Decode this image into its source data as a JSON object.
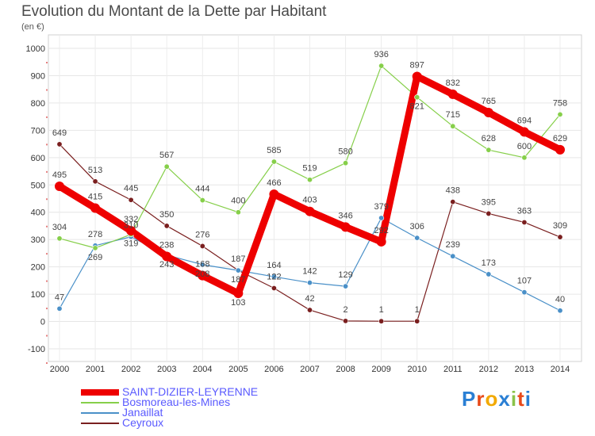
{
  "header": {
    "title": "Evolution du Montant de la Dette par Habitant",
    "unit": "(en €)"
  },
  "brand": {
    "letters": [
      "P",
      "r",
      "o",
      "x",
      "i",
      "t",
      "i"
    ],
    "colors": [
      "#2a7fd4",
      "#e84a1a",
      "#f2a900",
      "#2a7fd4",
      "#8bc34a",
      "#e84a1a",
      "#2a7fd4"
    ]
  },
  "chart_data": {
    "type": "line",
    "title": "Evolution du Montant de la Dette par Habitant",
    "ylabel": "(en €)",
    "xlabel": "",
    "x": [
      "2000",
      "2001",
      "2002",
      "2003",
      "2004",
      "2005",
      "2006",
      "2007",
      "2008",
      "2009",
      "2010",
      "2011",
      "2012",
      "2013",
      "2014"
    ],
    "ylim": [
      -100,
      1000
    ],
    "yticks": [
      "-100",
      "0",
      "100",
      "200",
      "300",
      "400",
      "500",
      "600",
      "700",
      "800",
      "900",
      "1000"
    ],
    "grid": true,
    "legend_position": "bottom-left",
    "series": [
      {
        "name": "Ceyroux",
        "color": "#7a1f1f",
        "values": [
          649,
          513,
          445,
          350,
          276,
          187,
          122,
          42,
          2,
          1,
          1,
          438,
          395,
          363,
          309
        ],
        "labels": [
          "649",
          "513",
          "445",
          "350",
          "276",
          "187",
          "122",
          "42",
          "2",
          "1",
          "1",
          "438",
          "395",
          "363",
          "309"
        ]
      },
      {
        "name": "Janaillat",
        "color": "#4a90c8",
        "values": [
          47,
          278,
          310,
          243,
          208,
          187,
          164,
          142,
          129,
          379,
          306,
          239,
          173,
          107,
          40
        ],
        "labels": [
          "47",
          "278",
          "310",
          "243",
          "208",
          "187",
          "164",
          "142",
          "129",
          "379",
          "306",
          "239",
          "173",
          "107",
          "40"
        ]
      },
      {
        "name": "Bosmoreau-les-Mines",
        "color": "#86cf4a",
        "values": [
          304,
          269,
          319,
          567,
          444,
          400,
          585,
          519,
          580,
          936,
          821,
          715,
          628,
          600,
          758
        ],
        "labels": [
          "304",
          "269",
          "319",
          "567",
          "444",
          "400",
          "585",
          "519",
          "580",
          "936",
          "821",
          "715",
          "628",
          "600",
          "758"
        ]
      },
      {
        "name": "SAINT-DIZIER-LEYRENNE",
        "color": "#ee0000",
        "values": [
          495,
          415,
          332,
          238,
          168,
          103,
          466,
          403,
          346,
          292,
          897,
          832,
          765,
          694,
          629
        ],
        "labels": [
          "495",
          "415",
          "332",
          "238",
          "168",
          "103",
          "466",
          "403",
          "346",
          "292",
          "897",
          "832",
          "765",
          "694",
          "629"
        ]
      }
    ]
  }
}
